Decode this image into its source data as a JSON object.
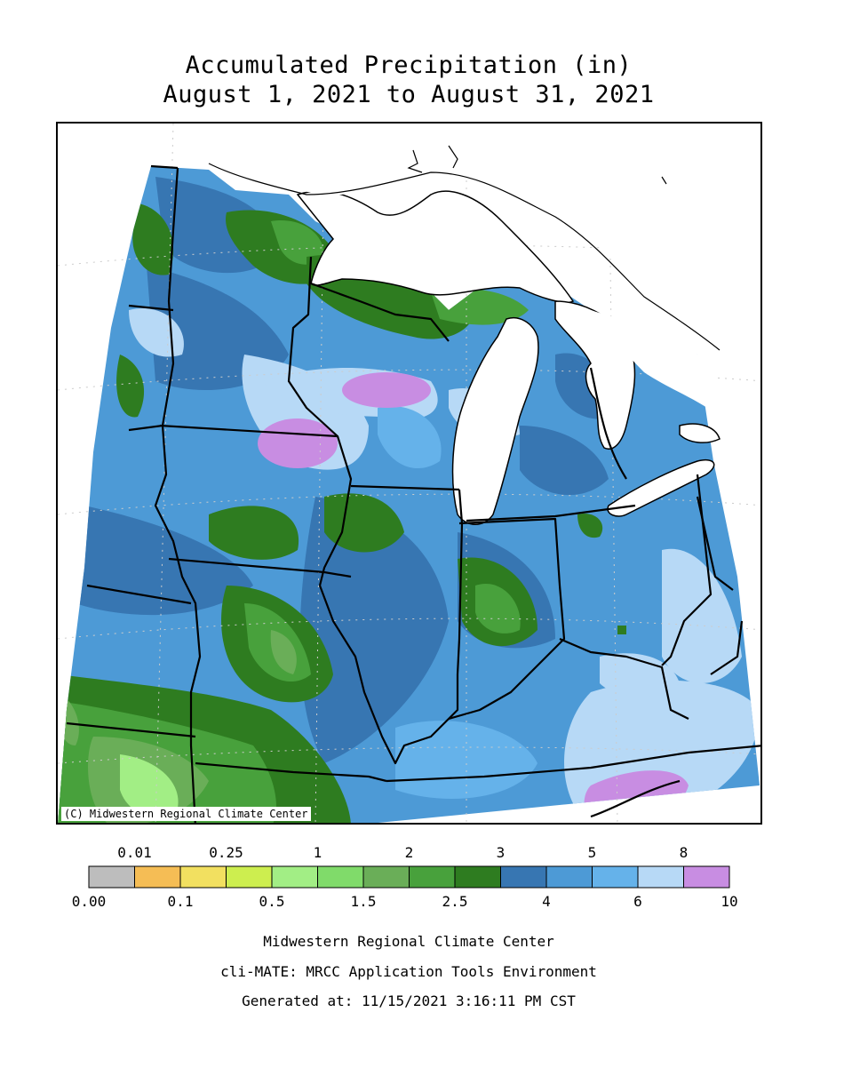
{
  "title": "Accumulated Precipitation (in)",
  "subtitle": "August 1, 2021 to August 31, 2021",
  "map": {
    "copyright": "(C) Midwestern Regional Climate Center"
  },
  "legend": {
    "colors": [
      "#bdbdbd",
      "#f5bd55",
      "#f2e060",
      "#cdee4f",
      "#a2ee85",
      "#80db6a",
      "#6aae58",
      "#48a13c",
      "#2e7c20",
      "#3776b2",
      "#4d9ad6",
      "#65b2ea",
      "#b7d9f6",
      "#c88de2"
    ],
    "upper_labels": [
      "0.01",
      "0.25",
      "1",
      "2",
      "3",
      "5",
      "8"
    ],
    "lower_labels": [
      "0.00",
      "0.1",
      "0.5",
      "1.5",
      "2.5",
      "4",
      "6",
      "10"
    ]
  },
  "footer": {
    "line1": "Midwestern Regional Climate Center",
    "line2": "cli-MATE: MRCC Application Tools Environment",
    "line3": "Generated at: 11/15/2021 3:16:11 PM CST"
  }
}
